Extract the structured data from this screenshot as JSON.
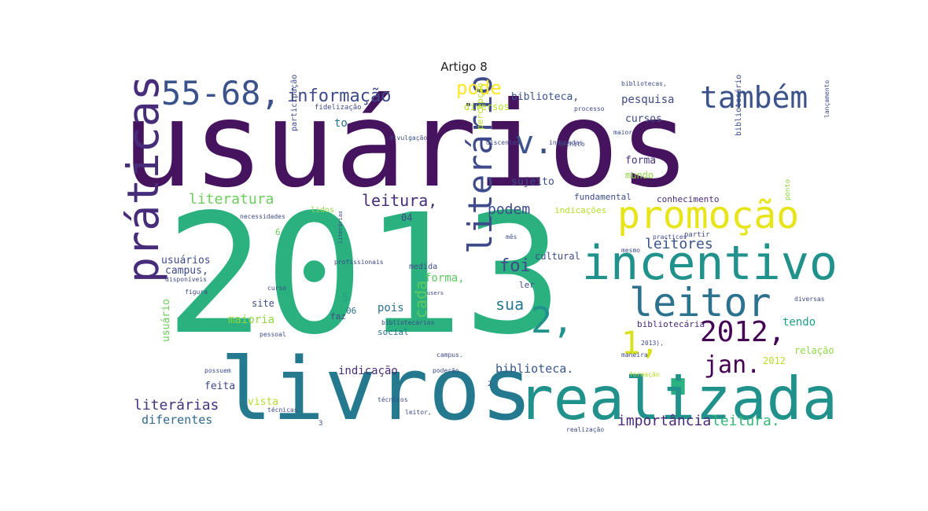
{
  "chart_data": {
    "type": "wordcloud",
    "title": "Artigo 8",
    "colormap": "viridis",
    "words": [
      {
        "text": "usuários",
        "color": "#46145e"
      },
      {
        "text": "2013",
        "color": "#2bb07f"
      },
      {
        "text": ".",
        "color": "#2bb07f"
      },
      {
        "text": "livros",
        "color": "#24798e"
      },
      {
        "text": "realizada",
        "color": "#21918c"
      },
      {
        "text": "práticas",
        "color": "#472c7a"
      },
      {
        "text": "incentivo",
        "color": "#21918c"
      },
      {
        "text": "promoção",
        "color": "#e7e419"
      },
      {
        "text": "leitor",
        "color": "#2c728e"
      },
      {
        "text": "também",
        "color": "#3b528b"
      },
      {
        "text": "55-68,",
        "color": "#3b528b"
      },
      {
        "text": "literário",
        "color": "#3e4a89"
      },
      {
        "text": "v.",
        "color": "#3b528b"
      },
      {
        "text": "2,",
        "color": "#21918c"
      },
      {
        "text": "1,",
        "color": "#d8e219"
      },
      {
        "text": "2012,",
        "color": "#440154"
      },
      {
        "text": "jan.",
        "color": "#440154"
      },
      {
        "text": "informação",
        "color": "#3e4a89"
      },
      {
        "text": "pode",
        "color": "#fde725"
      },
      {
        "text": "foi",
        "color": "#3e4a89"
      },
      {
        "text": "sua",
        "color": "#2a788e"
      },
      {
        "text": "cada",
        "color": "#5ec962"
      },
      {
        "text": "leitura,",
        "color": "#472c7a"
      },
      {
        "text": "literatura",
        "color": "#6ccd5a"
      },
      {
        "text": "podem",
        "color": "#3e4a89"
      },
      {
        "text": "leitores",
        "color": "#3b528b"
      },
      {
        "text": "importância",
        "color": "#482878"
      },
      {
        "text": "leitura.",
        "color": "#35b779"
      },
      {
        "text": "literárias",
        "color": "#46337e"
      },
      {
        "text": "diferentes",
        "color": "#31688e"
      },
      {
        "text": "biblioteca.",
        "color": "#38588c"
      },
      {
        "text": "biblioteca,",
        "color": "#3b528b"
      },
      {
        "text": "pesquisa",
        "color": "#3e4a89"
      },
      {
        "text": "forma,",
        "color": "#5ec962"
      },
      {
        "text": "maioria",
        "color": "#8fd744"
      },
      {
        "text": "pois",
        "color": "#2c728e"
      },
      {
        "text": "indicação",
        "color": "#472c7a"
      },
      {
        "text": "tendo",
        "color": "#1f9e89"
      },
      {
        "text": "cursos",
        "color": "#3e4a89"
      },
      {
        "text": "forma",
        "color": "#46337e"
      },
      {
        "text": "mundo",
        "color": "#8fd744"
      },
      {
        "text": "sujeito",
        "color": "#3e4a89"
      },
      {
        "text": "fundamental",
        "color": "#3e4a89"
      },
      {
        "text": "conhecimento",
        "color": "#472c7a"
      },
      {
        "text": "indicações",
        "color": "#b5de2b"
      },
      {
        "text": "lidos",
        "color": "#8fd744"
      },
      {
        "text": "usuários",
        "color": "#3e4a89"
      },
      {
        "text": "campus,",
        "color": "#3e4a89"
      },
      {
        "text": "usuário",
        "color": "#6ccd5a"
      },
      {
        "text": "feita",
        "color": "#3e4a89"
      },
      {
        "text": "vista",
        "color": "#b5de2b"
      },
      {
        "text": "site",
        "color": "#3e4a89"
      },
      {
        "text": "social",
        "color": "#2c728e"
      },
      {
        "text": "faz",
        "color": "#3e4a89"
      },
      {
        "text": "ler",
        "color": "#3e4a89"
      },
      {
        "text": "cultural",
        "color": "#3e4a89"
      },
      {
        "text": "bibliotecária",
        "color": "#472c7a"
      },
      {
        "text": "relação",
        "color": "#8fd744"
      },
      {
        "text": "2012",
        "color": "#b5de2b"
      },
      {
        "text": "medida",
        "color": "#3e4a89"
      },
      {
        "text": "to",
        "color": "#2c728e"
      },
      {
        "text": "04",
        "color": "#3e4a89"
      },
      {
        "text": "5",
        "color": "#1fa187"
      },
      {
        "text": "06",
        "color": "#2c728e"
      },
      {
        "text": "6",
        "color": "#6ccd5a"
      },
      {
        "text": "diversos",
        "color": "#b5de2b"
      },
      {
        "text": "percepção",
        "color": "#b5de2b"
      },
      {
        "text": "participação",
        "color": "#3e4a89"
      },
      {
        "text": "bibliotecário",
        "color": "#3e4a89"
      },
      {
        "text": "ponto",
        "color": "#8fd744"
      },
      {
        "text": "fidelização",
        "color": "#3e4a89"
      },
      {
        "text": "divulgação",
        "color": "#3e4a89"
      },
      {
        "text": "discentes",
        "color": "#3e4a89"
      },
      {
        "text": "indicadas",
        "color": "#3e4a89"
      },
      {
        "text": "técnicos",
        "color": "#3e4a89"
      },
      {
        "text": "necessidades",
        "color": "#3e4a89"
      },
      {
        "text": "bibliotecários",
        "color": "#3e4a89"
      },
      {
        "text": "literárias",
        "color": "#3e4a89"
      },
      {
        "text": "profissionais",
        "color": "#3e4a89"
      },
      {
        "text": "mês",
        "color": "#3e4a89"
      },
      {
        "text": "practices",
        "color": "#3e4a89"
      },
      {
        "text": "partir",
        "color": "#3e4a89"
      },
      {
        "text": "disponíveis",
        "color": "#3e4a89"
      },
      {
        "text": "figura",
        "color": "#3e4a89"
      },
      {
        "text": "curso",
        "color": "#3e4a89"
      },
      {
        "text": "users",
        "color": "#3e4a89"
      },
      {
        "text": "pessoal",
        "color": "#3e4a89"
      },
      {
        "text": "possuem",
        "color": "#3e4a89"
      },
      {
        "text": "poderão",
        "color": "#3e4a89"
      },
      {
        "text": "formação",
        "color": "#b5de2b"
      },
      {
        "text": "diversas",
        "color": "#3e4a89"
      },
      {
        "text": "leitor,",
        "color": "#3e4a89"
      },
      {
        "text": "técnicas",
        "color": "#3e4a89"
      },
      {
        "text": "realização",
        "color": "#3e4a89"
      },
      {
        "text": "bibliotecas,",
        "color": "#3e4a89"
      },
      {
        "text": "processo",
        "color": "#3e4a89"
      },
      {
        "text": "maior",
        "color": "#3e4a89"
      },
      {
        "text": "técnico",
        "color": "#3e4a89"
      },
      {
        "text": "lançamento",
        "color": "#3e4a89"
      },
      {
        "text": "2013),",
        "color": "#3e4a89"
      },
      {
        "text": "maneira",
        "color": "#3e4a89"
      },
      {
        "text": "campus.",
        "color": "#3e4a89"
      },
      {
        "text": "mesmo",
        "color": "#3e4a89"
      },
      {
        "text": "2",
        "color": "#3e4a89"
      },
      {
        "text": "3",
        "color": "#3e4a89"
      }
    ]
  }
}
